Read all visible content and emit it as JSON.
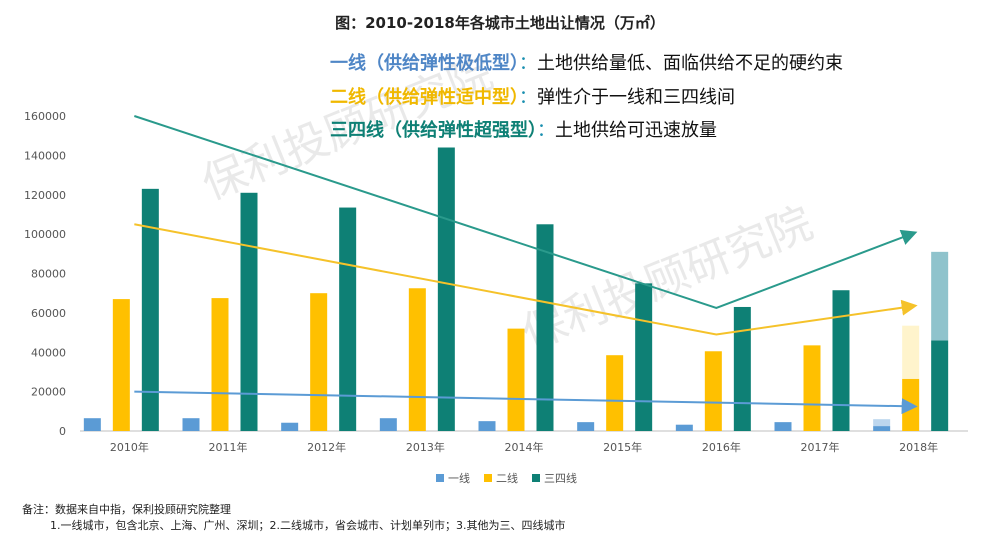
{
  "chart_data": {
    "type": "bar",
    "title": "图：2010-2018年各城市土地出让情况（万㎡）",
    "categories": [
      "2010年",
      "2011年",
      "2012年",
      "2013年",
      "2014年",
      "2015年",
      "2016年",
      "2017年",
      "2018年"
    ],
    "series": [
      {
        "name": "一线",
        "color": "#5b9bd5",
        "values": [
          6500,
          6500,
          4200,
          6500,
          5000,
          4500,
          3200,
          4500,
          2500
        ]
      },
      {
        "name": "二线",
        "color": "#ffc000",
        "values": [
          67000,
          67500,
          70000,
          72500,
          52000,
          38500,
          40500,
          43500,
          26500
        ]
      },
      {
        "name": "三四线",
        "color": "#0e8075",
        "values": [
          123000,
          121000,
          113500,
          144000,
          105000,
          75000,
          63000,
          71500,
          46000
        ]
      }
    ],
    "stacked_2018": {
      "一线": [
        {
          "value": 2500,
          "color": "#5b9bd5"
        },
        {
          "value": 3500,
          "color": "#bcd6ee"
        }
      ],
      "二线": [
        {
          "value": 26500,
          "color": "#ffc000"
        },
        {
          "value": 27000,
          "color": "#fff4cc"
        }
      ],
      "三四线": [
        {
          "value": 46000,
          "color": "#0e8075"
        },
        {
          "value": 45000,
          "color": "#8fc3cc"
        }
      ]
    },
    "ylim": [
      0,
      160000
    ],
    "yticks": [
      0,
      20000,
      40000,
      60000,
      80000,
      100000,
      120000,
      140000,
      160000
    ],
    "legend_position": "bottom",
    "trend_lines": [
      {
        "series": "一线",
        "color": "#5b9bd5",
        "points": [
          [
            "2010年",
            20000
          ],
          [
            "2018年",
            12500
          ]
        ]
      },
      {
        "series": "二线",
        "color": "#f5c22a",
        "points": [
          [
            "2010年",
            105000
          ],
          [
            "2016年",
            49000
          ],
          [
            "2018年",
            63500
          ]
        ]
      },
      {
        "series": "三四线",
        "color": "#2a9a8c",
        "points": [
          [
            "2010年",
            160000
          ],
          [
            "2016年",
            62500
          ],
          [
            "2018年",
            100500
          ]
        ]
      }
    ],
    "annotations": [
      {
        "head": "一线（供给弹性极低型）",
        "sep": "：",
        "desc": "土地供给量低、面临供给不足的硬约束",
        "color": "#4f86c6"
      },
      {
        "head": "二线（供给弹性适中型）",
        "sep": "：",
        "desc": "弹性介于一线和三四线间",
        "color": "#f0b800"
      },
      {
        "head": "三四线（供给弹性超强型）",
        "sep": "：",
        "desc": "土地供给可迅速放量",
        "color": "#0e8075"
      }
    ],
    "watermark": "保利投顾研究院"
  },
  "notes": {
    "line1": "备注：数据来自中指，保利投顾研究院整理",
    "line2": "1.一线城市，包含北京、上海、广州、深圳；2.二线城市，省会城市、计划单列市；3.其他为三、四线城市"
  }
}
